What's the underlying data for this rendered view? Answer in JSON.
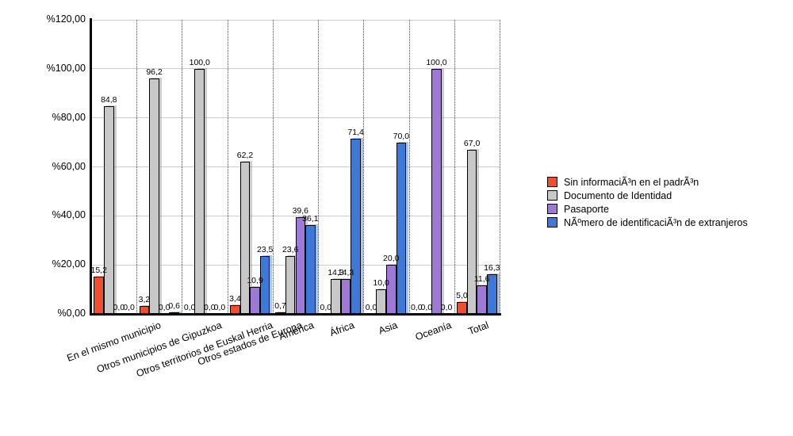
{
  "chart_data": {
    "type": "bar",
    "title": "",
    "xlabel": "",
    "ylabel": "",
    "ylim": [
      0,
      120
    ],
    "grid": "horizontal solid gray lines every 20%, vertical dotted category separators",
    "legend_position": "right",
    "value_label_format": "one decimal, comma separator",
    "yticks": [
      {
        "value": 0,
        "label": "%0,00"
      },
      {
        "value": 20,
        "label": "%20,00"
      },
      {
        "value": 40,
        "label": "%40,00"
      },
      {
        "value": 60,
        "label": "%60,00"
      },
      {
        "value": 80,
        "label": "%80,00"
      },
      {
        "value": 100,
        "label": "%100,00"
      },
      {
        "value": 120,
        "label": "%120,00"
      }
    ],
    "categories": [
      "En el mismo municipio",
      "Otros municipios de Gipuzkoa",
      "Otros territorios de Euskal Herria",
      "Otros estados de Europa",
      "América",
      "África",
      "Asia",
      "Oceanía",
      "Total"
    ],
    "series": [
      {
        "name": "Sin informaciÃ³n en el padrÃ³n",
        "color": "#F04E2F",
        "shadow": "rgba(240,78,47,0.40)",
        "values": [
          15.2,
          3.2,
          0.0,
          3.4,
          0.7,
          0.0,
          0.0,
          0.0,
          5.0
        ]
      },
      {
        "name": "Documento de Identidad",
        "color": "#C8C8C8",
        "shadow": "rgba(130,130,130,0.40)",
        "values": [
          84.8,
          96.2,
          100.0,
          62.2,
          23.6,
          14.3,
          10.0,
          0.0,
          67.0
        ]
      },
      {
        "name": "Pasaporte",
        "color": "#9E79D6",
        "shadow": "rgba(158,121,214,0.45)",
        "values": [
          0.0,
          0.0,
          0.0,
          10.9,
          39.6,
          14.3,
          20.0,
          100.0,
          11.6
        ]
      },
      {
        "name": "NÃºmero de identificaciÃ³n de extranjeros",
        "color": "#3D79D8",
        "shadow": "rgba(61,121,216,0.45)",
        "values": [
          0.0,
          0.6,
          0.0,
          23.5,
          36.1,
          71.4,
          70.0,
          0.0,
          16.3
        ]
      }
    ]
  }
}
